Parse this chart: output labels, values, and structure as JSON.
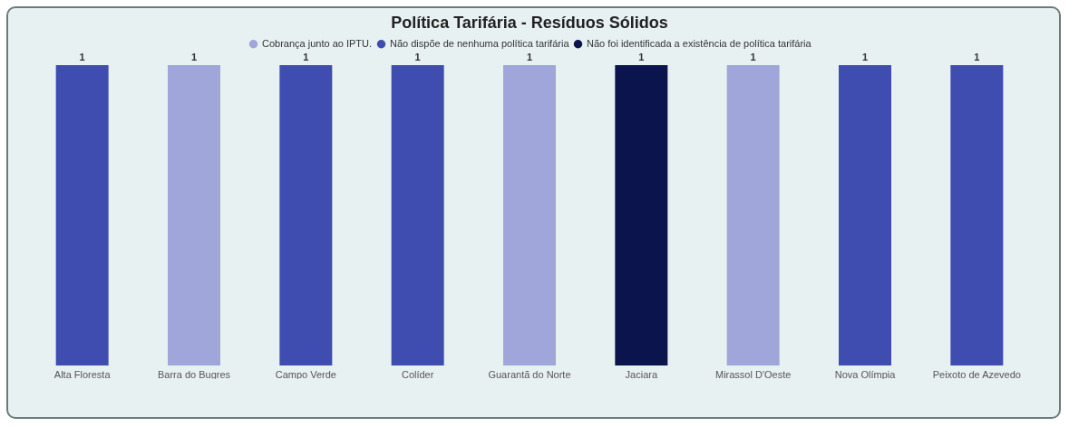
{
  "chart_data": {
    "type": "bar",
    "title": "Política Tarifária - Resíduos Sólidos",
    "categories": [
      "Alta Floresta",
      "Barra do Bugres",
      "Campo Verde",
      "Colíder",
      "Guarantã do Norte",
      "Jaciara",
      "Mirassol D'Oeste",
      "Nova Olímpia",
      "Peixoto de Azevedo"
    ],
    "series": [
      {
        "name": "Cobrança junto ao IPTU.",
        "color": "#a0a6d9",
        "values": [
          null,
          1,
          null,
          null,
          1,
          null,
          1,
          null,
          null
        ]
      },
      {
        "name": "Não dispõe de nenhuma política tarifária",
        "color": "#3f4db0",
        "values": [
          1,
          null,
          1,
          1,
          null,
          null,
          null,
          1,
          1
        ]
      },
      {
        "name": "Não foi identificada a existência de política tarifária",
        "color": "#0b144c",
        "values": [
          null,
          null,
          null,
          null,
          null,
          1,
          null,
          null,
          null
        ]
      }
    ],
    "data_labels": true,
    "legend": "top",
    "grid": false
  }
}
